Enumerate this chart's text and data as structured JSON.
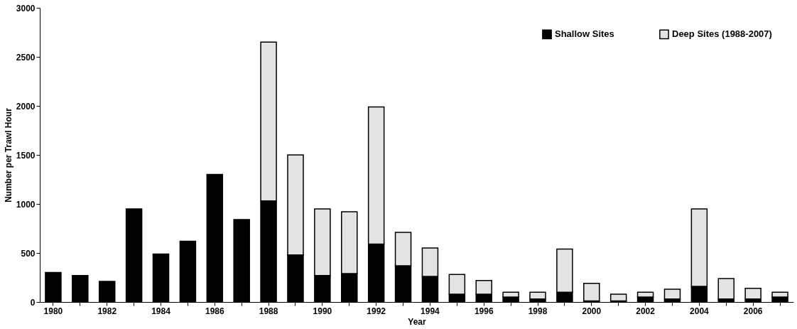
{
  "chart_data": {
    "type": "bar",
    "stacked": true,
    "xlabel": "Year",
    "ylabel": "Number per Trawl Hour",
    "categories": [
      "1980",
      null,
      "1982",
      null,
      "1984",
      null,
      "1986",
      null,
      "1988",
      null,
      "1990",
      null,
      "1992",
      null,
      "1994",
      null,
      "1996",
      null,
      "1998",
      null,
      "2000",
      null,
      "2002",
      null,
      "2004",
      null,
      "2006",
      null
    ],
    "series": [
      {
        "name": "Shallow Sites",
        "color": "#000000",
        "values": [
          300,
          270,
          210,
          950,
          490,
          620,
          1300,
          840,
          1030,
          480,
          270,
          290,
          590,
          370,
          260,
          80,
          80,
          50,
          30,
          100,
          10,
          10,
          50,
          30,
          160,
          30,
          30,
          50
        ]
      },
      {
        "name": "Deep Sites (1988-2007)",
        "color": "#e3e3e3",
        "values": [
          null,
          null,
          null,
          null,
          null,
          null,
          null,
          null,
          1620,
          1020,
          680,
          630,
          1400,
          340,
          290,
          200,
          140,
          50,
          70,
          440,
          180,
          70,
          50,
          100,
          790,
          210,
          110,
          50
        ]
      }
    ],
    "ylim": [
      0,
      3000
    ],
    "yticks": [
      0,
      500,
      1000,
      1500,
      2000,
      2500,
      3000
    ],
    "grid": false,
    "legend": "top right"
  }
}
